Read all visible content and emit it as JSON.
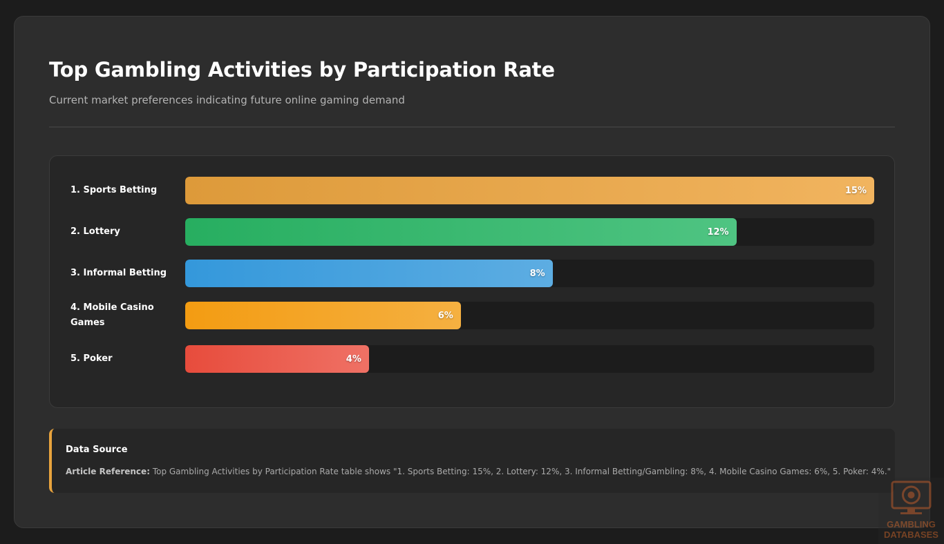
{
  "header": {
    "title": "Top Gambling Activities by Participation Rate",
    "subtitle": "Current market preferences indicating future online gaming demand"
  },
  "chart_data": {
    "type": "bar",
    "orientation": "horizontal",
    "title": "Top Gambling Activities by Participation Rate",
    "categories": [
      "1. Sports Betting",
      "2. Lottery",
      "3. Informal Betting",
      "4. Mobile Casino Games",
      "5. Poker"
    ],
    "values": [
      15,
      12,
      8,
      6,
      4
    ],
    "value_labels": [
      "15%",
      "12%",
      "8%",
      "6%",
      "4%"
    ],
    "unit": "%",
    "xlim": [
      0,
      15
    ],
    "colors": [
      [
        "#dd9a3a",
        "#f1b45f"
      ],
      [
        "#27ae60",
        "#4fc482"
      ],
      [
        "#3498db",
        "#5dade2"
      ],
      [
        "#f39c12",
        "#f5b041"
      ],
      [
        "#e74c3c",
        "#ef7165"
      ]
    ]
  },
  "source": {
    "heading": "Data Source",
    "ref_label": "Article Reference:",
    "ref_text": " Top Gambling Activities by Participation Rate table shows \"1. Sports Betting: 15%, 2. Lottery: 12%, 3. Informal Betting/Gambling: 8%, 4. Mobile Casino Games: 6%, 5. Poker: 4%.\""
  },
  "watermark": {
    "line1": "GAMBLING",
    "line2": "DATABASES"
  },
  "theme": {
    "accent": "#e8a33d",
    "background": "#1c1c1c",
    "card": "#2d2d2d"
  }
}
